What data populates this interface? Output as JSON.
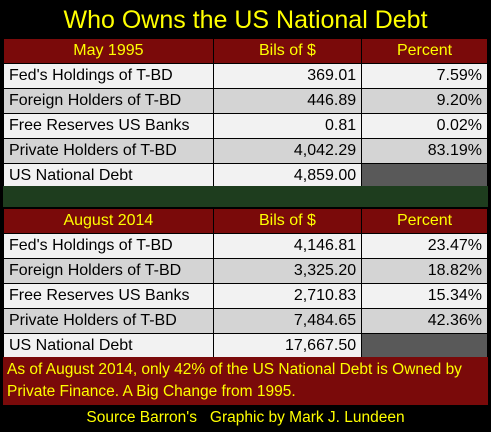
{
  "title": "Who Owns the US National Debt",
  "colors": {
    "header_bg": "#7a0a0a",
    "header_text": "#ffff00",
    "row_light": "#f2f2f2",
    "row_grey": "#d4d4d4",
    "gap_green": "#1e3d1e",
    "empty_cell": "#595959"
  },
  "sections": [
    {
      "period": "May 1995",
      "col_bils": "Bils of $",
      "col_percent": "Percent",
      "rows": [
        {
          "label": "Fed's Holdings of T-BD",
          "bils": "369.01",
          "percent": "7.59%"
        },
        {
          "label": "Foreign Holders of T-BD",
          "bils": "446.89",
          "percent": "9.20%"
        },
        {
          "label": "Free Reserves US Banks",
          "bils": "0.81",
          "percent": "0.02%"
        },
        {
          "label": "Private Holders of T-BD",
          "bils": "4,042.29",
          "percent": "83.19%"
        },
        {
          "label": "US National Debt",
          "bils": "4,859.00",
          "percent": ""
        }
      ]
    },
    {
      "period": "August 2014",
      "col_bils": "Bils of $",
      "col_percent": "Percent",
      "rows": [
        {
          "label": "Fed's Holdings of T-BD",
          "bils": "4,146.81",
          "percent": "23.47%"
        },
        {
          "label": "Foreign Holders of T-BD",
          "bils": "3,325.20",
          "percent": "18.82%"
        },
        {
          "label": "Free Reserves US Banks",
          "bils": "2,710.83",
          "percent": "15.34%"
        },
        {
          "label": "Private Holders of T-BD",
          "bils": "7,484.65",
          "percent": "42.36%"
        },
        {
          "label": "US National Debt",
          "bils": "17,667.50",
          "percent": ""
        }
      ]
    }
  ],
  "note": "As of August 2014, only 42% of the US National Debt is Owned by Private Finance.  A Big Change from 1995.",
  "source": "Source Barron's   Graphic by Mark J. Lundeen"
}
